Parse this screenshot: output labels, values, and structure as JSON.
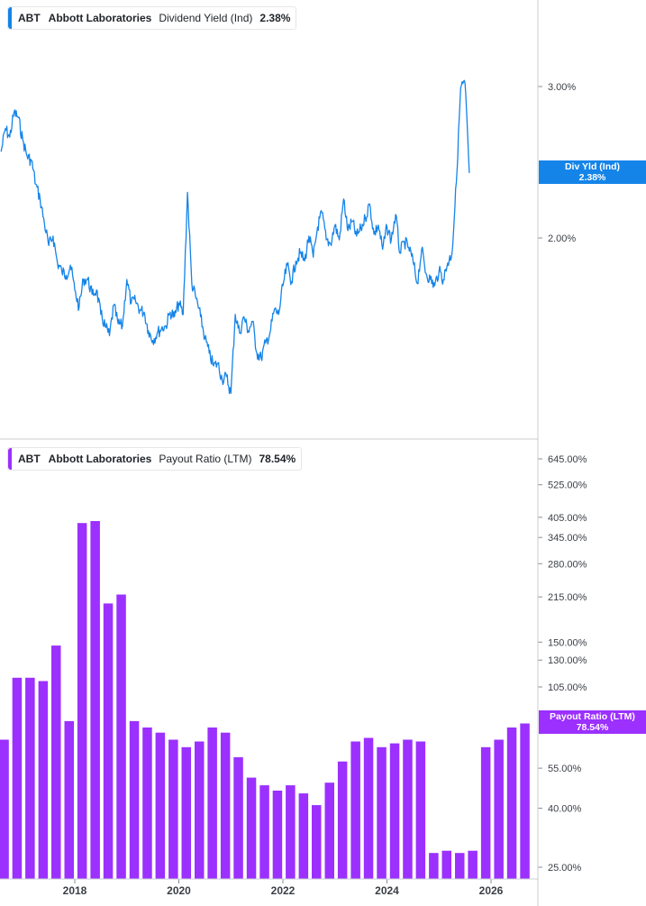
{
  "chart_data": [
    {
      "type": "line",
      "ticker": "ABT",
      "company": "Abbott Laboratories",
      "metric": "Dividend Yield (Ind)",
      "last_value_label": "2.38%",
      "tag_label": "Div Yld (Ind)",
      "tag_value": "2.38%",
      "color": "#1584e8",
      "y_scale": "log",
      "y_ticks": [
        {
          "value": 3.0,
          "label": "3.00%"
        },
        {
          "value": 2.0,
          "label": "2.00%"
        }
      ],
      "series": [
        {
          "x": [
            "2016-08",
            "2016-09",
            "2016-10",
            "2016-11",
            "2016-12",
            "2017-01",
            "2017-02",
            "2017-03",
            "2017-04",
            "2017-05",
            "2017-06",
            "2017-07",
            "2017-08",
            "2017-09",
            "2017-10",
            "2017-11",
            "2017-12",
            "2018-01",
            "2018-02",
            "2018-03",
            "2018-04",
            "2018-05",
            "2018-06",
            "2018-07",
            "2018-08",
            "2018-09",
            "2018-10",
            "2018-11",
            "2018-12",
            "2019-01",
            "2019-02",
            "2019-03",
            "2019-04",
            "2019-05",
            "2019-06",
            "2019-07",
            "2019-08",
            "2019-09",
            "2019-10",
            "2019-11",
            "2019-12",
            "2020-01",
            "2020-02",
            "2020-03",
            "2020-04",
            "2020-05",
            "2020-06",
            "2020-07",
            "2020-08",
            "2020-09",
            "2020-10",
            "2020-11",
            "2020-12",
            "2021-01",
            "2021-02",
            "2021-03",
            "2021-04",
            "2021-05",
            "2021-06",
            "2021-07",
            "2021-08",
            "2021-09",
            "2021-10",
            "2021-11",
            "2021-12",
            "2022-01",
            "2022-02",
            "2022-03",
            "2022-04",
            "2022-05",
            "2022-06",
            "2022-07",
            "2022-08",
            "2022-09",
            "2022-10",
            "2022-11",
            "2022-12",
            "2023-01",
            "2023-02",
            "2023-03",
            "2023-04",
            "2023-05",
            "2023-06",
            "2023-07",
            "2023-08",
            "2023-09",
            "2023-10",
            "2023-11",
            "2023-12",
            "2024-01",
            "2024-02",
            "2024-03",
            "2024-04",
            "2024-05",
            "2024-06",
            "2024-07",
            "2024-08",
            "2024-09",
            "2024-10",
            "2024-11",
            "2024-12",
            "2025-01",
            "2025-02",
            "2025-03",
            "2025-04",
            "2025-05",
            "2025-06",
            "2025-07",
            "2025-08"
          ],
          "y": [
            2.52,
            2.68,
            2.62,
            2.8,
            2.76,
            2.6,
            2.49,
            2.46,
            2.31,
            2.22,
            2.08,
            1.96,
            2.01,
            1.87,
            1.83,
            1.81,
            1.86,
            1.74,
            1.66,
            1.79,
            1.79,
            1.72,
            1.74,
            1.63,
            1.58,
            1.54,
            1.67,
            1.59,
            1.58,
            1.79,
            1.68,
            1.69,
            1.65,
            1.64,
            1.56,
            1.52,
            1.55,
            1.57,
            1.58,
            1.64,
            1.62,
            1.68,
            1.63,
            2.26,
            1.77,
            1.7,
            1.62,
            1.53,
            1.47,
            1.42,
            1.43,
            1.37,
            1.38,
            1.32,
            1.63,
            1.55,
            1.62,
            1.56,
            1.6,
            1.47,
            1.45,
            1.51,
            1.55,
            1.65,
            1.63,
            1.76,
            1.86,
            1.78,
            1.88,
            1.92,
            1.88,
            2.01,
            1.9,
            2.06,
            2.14,
            1.99,
            1.97,
            2.07,
            1.99,
            2.22,
            2.04,
            2.09,
            2.01,
            2.05,
            2.11,
            2.19,
            2.02,
            2.07,
            1.94,
            2.06,
            1.99,
            2.13,
            1.92,
            1.98,
            1.95,
            1.88,
            1.77,
            1.94,
            1.82,
            1.79,
            1.76,
            1.83,
            1.79,
            1.87,
            1.92,
            2.32,
            2.99,
            3.03,
            2.38
          ]
        }
      ]
    },
    {
      "type": "bar",
      "ticker": "ABT",
      "company": "Abbott Laboratories",
      "metric": "Payout Ratio (LTM)",
      "last_value_label": "78.54%",
      "tag_label": "Payout Ratio (LTM)",
      "tag_value": "78.54%",
      "color": "#9b30ff",
      "y_scale": "log",
      "y_ticks": [
        {
          "value": 645,
          "label": "645.00%"
        },
        {
          "value": 525,
          "label": "525.00%"
        },
        {
          "value": 405,
          "label": "405.00%"
        },
        {
          "value": 345,
          "label": "345.00%"
        },
        {
          "value": 280,
          "label": "280.00%"
        },
        {
          "value": 215,
          "label": "215.00%"
        },
        {
          "value": 150,
          "label": "150.00%"
        },
        {
          "value": 130,
          "label": "130.00%"
        },
        {
          "value": 105,
          "label": "105.00%"
        },
        {
          "value": 55,
          "label": "55.00%"
        },
        {
          "value": 40,
          "label": "40.00%"
        },
        {
          "value": 25,
          "label": "25.00%"
        }
      ],
      "categories": [
        "2016Q2",
        "2016Q3",
        "2016Q4",
        "2017Q1",
        "2017Q2",
        "2017Q3",
        "2017Q4",
        "2018Q1",
        "2018Q2",
        "2018Q3",
        "2018Q4",
        "2019Q1",
        "2019Q2",
        "2019Q3",
        "2019Q4",
        "2020Q1",
        "2020Q2",
        "2020Q3",
        "2020Q4",
        "2021Q1",
        "2021Q2",
        "2021Q3",
        "2021Q4",
        "2022Q1",
        "2022Q2",
        "2022Q3",
        "2022Q4",
        "2023Q1",
        "2023Q2",
        "2023Q3",
        "2023Q4",
        "2024Q1",
        "2024Q2",
        "2024Q3",
        "2024Q4",
        "2025Q1",
        "2025Q2",
        "2025Q3",
        "2025Q4",
        "2026Q1",
        "2026Q2"
      ],
      "values": [
        69,
        113,
        113,
        110,
        146,
        80,
        387,
        393,
        204,
        219,
        80,
        76,
        73,
        69,
        65,
        68,
        76,
        73,
        60,
        51,
        48,
        46,
        48,
        45,
        41,
        49,
        58,
        68,
        70,
        65,
        67,
        69,
        68,
        28,
        28.5,
        28,
        28.5,
        65,
        69,
        76,
        78.54
      ],
      "partial_first_bar": true
    }
  ],
  "x_axis": {
    "labels": [
      {
        "date": "2018-01",
        "label": "2018"
      },
      {
        "date": "2020-01",
        "label": "2020"
      },
      {
        "date": "2022-01",
        "label": "2022"
      },
      {
        "date": "2024-01",
        "label": "2024"
      },
      {
        "date": "2026-01",
        "label": "2026"
      }
    ]
  }
}
